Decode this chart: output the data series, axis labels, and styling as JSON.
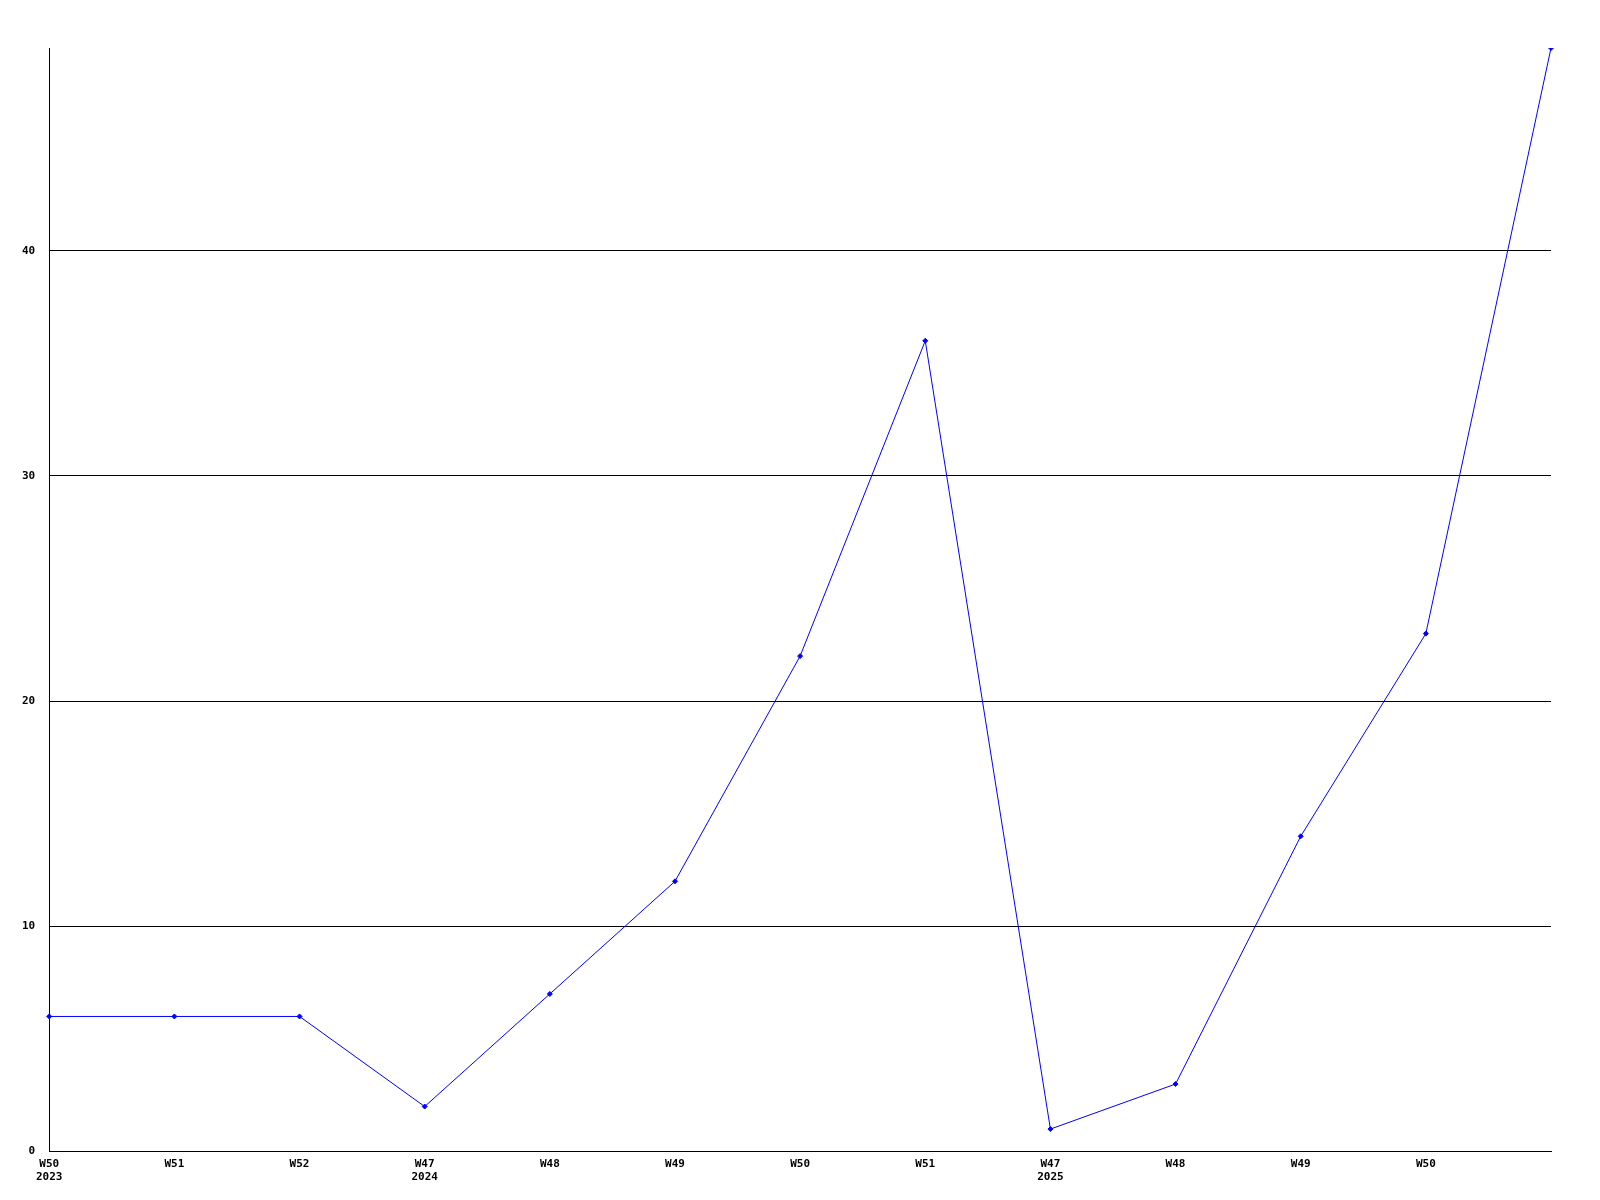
{
  "chart_data": {
    "type": "line",
    "categories": [
      "W50\n2023",
      "W51",
      "W52",
      "W47\n2024",
      "W48",
      "W49",
      "W50",
      "W51",
      "W47\n2025",
      "W48",
      "W49",
      "W50",
      null
    ],
    "series": [
      {
        "color": "#0000ff",
        "values": [
          6,
          6,
          6,
          2,
          7,
          12,
          22,
          36,
          1,
          3,
          14,
          23,
          49
        ]
      }
    ],
    "ylim": [
      0,
      49
    ],
    "yticks": [
      0,
      10,
      20,
      30,
      40
    ],
    "grid": "y",
    "legend": false,
    "marker": "diamond",
    "line_style": "solid"
  }
}
